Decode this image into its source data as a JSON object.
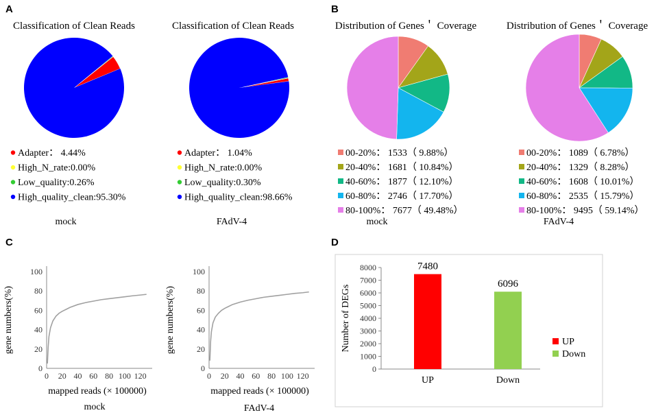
{
  "panels": [
    "A",
    "B",
    "C",
    "D"
  ],
  "chart_data": [
    {
      "id": "A1",
      "type": "pie",
      "title": "Classification of Clean Reads",
      "caption": "mock",
      "series": [
        {
          "name": "Adapter",
          "value": 4.44,
          "label": "Adapter： 4.44%",
          "color": "#ff0000"
        },
        {
          "name": "High_N_rate",
          "value": 0.0,
          "label": "High_N_rate:0.00%",
          "color": "#ffff33"
        },
        {
          "name": "Low_quality",
          "value": 0.26,
          "label": "Low_quality:0.26%",
          "color": "#33cc33"
        },
        {
          "name": "High_quality_clean",
          "value": 95.3,
          "label": "High_quality_clean:95.30%",
          "color": "#0000ff"
        }
      ]
    },
    {
      "id": "A2",
      "type": "pie",
      "title": "Classification of Clean Reads",
      "caption": "FAdV-4",
      "series": [
        {
          "name": "Adapter",
          "value": 1.04,
          "label": "Adapter： 1.04%",
          "color": "#ff0000"
        },
        {
          "name": "High_N_rate",
          "value": 0.0,
          "label": "High_N_rate:0.00%",
          "color": "#ffff33"
        },
        {
          "name": "Low_quality",
          "value": 0.3,
          "label": "Low_quality:0.30%",
          "color": "#33cc33"
        },
        {
          "name": "High_quality_clean",
          "value": 98.66,
          "label": "High_quality_clean:98.66%",
          "color": "#0000ff"
        }
      ]
    },
    {
      "id": "B1",
      "type": "pie",
      "title": "Distribution of Genes＇ Coverage",
      "caption": "mock",
      "series": [
        {
          "name": "00-20%",
          "value": 1533,
          "label": "00-20%： 1533（ 9.88%）",
          "color": "#f07c72"
        },
        {
          "name": "20-40%",
          "value": 1681,
          "label": "20-40%： 1681（ 10.84%）",
          "color": "#a3a519"
        },
        {
          "name": "40-60%",
          "value": 1877,
          "label": "40-60%： 1877（ 12.10%）",
          "color": "#12b886"
        },
        {
          "name": "60-80%",
          "value": 2746,
          "label": "60-80%： 2746（ 17.70%）",
          "color": "#13b5ee"
        },
        {
          "name": "80-100%",
          "value": 7677,
          "label": "80-100%： 7677（ 49.48%）",
          "color": "#e57fe8"
        }
      ]
    },
    {
      "id": "B2",
      "type": "pie",
      "title": "Distribution of Genes＇ Coverage",
      "caption": "FAdV-4",
      "series": [
        {
          "name": "00-20%",
          "value": 1089,
          "label": "00-20%： 1089（ 6.78%）",
          "color": "#f07c72"
        },
        {
          "name": "20-40%",
          "value": 1329,
          "label": "20-40%： 1329（ 8.28%）",
          "color": "#a3a519"
        },
        {
          "name": "40-60%",
          "value": 1608,
          "label": "40-60%： 1608（ 10.01%）",
          "color": "#12b886"
        },
        {
          "name": "60-80%",
          "value": 2535,
          "label": "60-80%： 2535（ 15.79%）",
          "color": "#13b5ee"
        },
        {
          "name": "80-100%",
          "value": 9495,
          "label": "80-100%： 9495（ 59.14%）",
          "color": "#e57fe8"
        }
      ]
    },
    {
      "id": "C1",
      "type": "line",
      "caption": "mock",
      "xlabel": "mapped reads (× 100000)",
      "ylabel": "gene numbers(%)",
      "xlim": [
        0,
        130
      ],
      "ylim": [
        0,
        100
      ],
      "xticks": [
        0,
        20,
        40,
        60,
        80,
        100,
        120
      ],
      "yticks": [
        0,
        20,
        40,
        60,
        80,
        100
      ],
      "x": [
        1,
        2,
        3,
        5,
        8,
        12,
        16,
        20,
        25,
        30,
        40,
        50,
        60,
        70,
        80,
        90,
        100,
        110,
        120,
        128
      ],
      "y": [
        5,
        22,
        33,
        42,
        49,
        54,
        57,
        59,
        61,
        63,
        66,
        68,
        69.5,
        71,
        72,
        73,
        74,
        75,
        75.8,
        76.5
      ]
    },
    {
      "id": "C2",
      "type": "line",
      "caption": "FAdV-4",
      "xlabel": "mapped reads (× 100000)",
      "ylabel": "gene numbers(%)",
      "xlim": [
        0,
        130
      ],
      "ylim": [
        0,
        100
      ],
      "xticks": [
        0,
        20,
        40,
        60,
        80,
        100,
        120
      ],
      "yticks": [
        0,
        20,
        40,
        60,
        80,
        100
      ],
      "x": [
        1,
        2,
        3,
        5,
        8,
        12,
        16,
        20,
        25,
        30,
        40,
        50,
        60,
        70,
        80,
        90,
        100,
        110,
        120,
        128
      ],
      "y": [
        8,
        28,
        38,
        47,
        53,
        57,
        60,
        62,
        64,
        66,
        68.5,
        70.5,
        72,
        73.5,
        74.5,
        75.5,
        76.5,
        77.5,
        78.2,
        79
      ]
    },
    {
      "id": "D",
      "type": "bar",
      "categories": [
        "UP",
        "Down"
      ],
      "values": [
        7480,
        6096
      ],
      "value_labels": [
        "7480",
        "6096"
      ],
      "colors": [
        "#ff0000",
        "#92d050"
      ],
      "ylabel": "Number of DEGs",
      "ylim": [
        0,
        8000
      ],
      "yticks": [
        0,
        1000,
        2000,
        3000,
        4000,
        5000,
        6000,
        7000,
        8000
      ],
      "legend": [
        {
          "name": "UP",
          "color": "#ff0000"
        },
        {
          "name": "Down",
          "color": "#92d050"
        }
      ]
    }
  ]
}
